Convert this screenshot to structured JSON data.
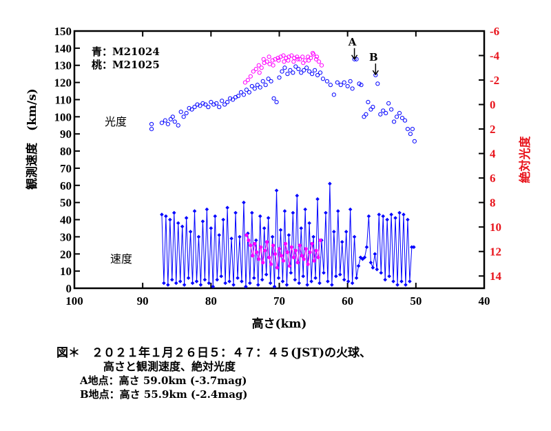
{
  "chart_data": {
    "type": "scatter",
    "xlabel": "高さ(km)",
    "ylabel": "観測速度　(km/s)",
    "y2label": "絶対光度",
    "xlim": [
      100,
      40
    ],
    "ylim": [
      0,
      150
    ],
    "y2lim": [
      15,
      -6
    ],
    "xticks": [
      100,
      90,
      80,
      70,
      60,
      50,
      40
    ],
    "yticks": [
      0,
      10,
      20,
      30,
      40,
      50,
      60,
      70,
      80,
      90,
      100,
      110,
      120,
      130,
      140,
      150
    ],
    "y2ticks": [
      -6,
      -4,
      -2,
      0,
      2,
      4,
      6,
      8,
      10,
      12,
      14
    ],
    "legend": [
      {
        "label": "青：M21024",
        "color": "#0000ff"
      },
      {
        "label": "桃：M21025",
        "color": "#ff00ff"
      }
    ],
    "region_labels": {
      "brightness": "光度",
      "velocity": "速度"
    },
    "annotations": [
      {
        "label": "A",
        "x": 59.0,
        "y": 132
      },
      {
        "label": "B",
        "x": 55.9,
        "y": 123
      }
    ],
    "series": [
      {
        "name": "青：M21024",
        "kind": "brightness",
        "axis": "right",
        "color": "#0000ff",
        "x": [
          88.7,
          88.7,
          87.2,
          86.7,
          86.3,
          85.9,
          85.6,
          85.3,
          84.8,
          84.4,
          84.0,
          83.6,
          83.2,
          82.8,
          82.4,
          82.0,
          81.6,
          81.2,
          80.8,
          80.4,
          80.0,
          79.6,
          79.2,
          78.8,
          78.4,
          78.0,
          77.6,
          77.2,
          76.8,
          76.4,
          76.0,
          75.6,
          75.2,
          74.8,
          74.4,
          74.0,
          73.6,
          73.2,
          72.8,
          72.4,
          72.0,
          71.6,
          71.2,
          70.8,
          70.4,
          70.0,
          69.6,
          69.2,
          68.8,
          68.4,
          68.0,
          67.6,
          67.2,
          66.8,
          66.4,
          66.0,
          65.6,
          65.2,
          64.8,
          64.4,
          64.0,
          63.6,
          63.0,
          62.5,
          62.0,
          61.5,
          61.0,
          60.5,
          60.0,
          59.6,
          59.3,
          59.0,
          58.7,
          58.3,
          58.0,
          57.6,
          57.3,
          57.0,
          56.6,
          56.3,
          55.9,
          55.6,
          55.2,
          54.8,
          54.4,
          54.0,
          53.6,
          53.2,
          52.8,
          52.4,
          52.0,
          51.6,
          51.2,
          50.8,
          50.5,
          50.2
        ],
        "y": [
          2.0,
          1.6,
          1.5,
          1.3,
          1.6,
          1.2,
          1.0,
          1.4,
          1.7,
          0.6,
          1.0,
          0.7,
          0.3,
          0.4,
          0.2,
          0.0,
          0.1,
          -0.1,
          0.0,
          0.2,
          -0.2,
          0.0,
          -0.1,
          0.2,
          -0.3,
          0.0,
          -0.2,
          -0.5,
          -0.4,
          -0.6,
          -0.7,
          -1.0,
          -0.8,
          -1.2,
          -1.0,
          -1.5,
          -1.3,
          -1.6,
          -1.4,
          -1.9,
          -1.6,
          -2.1,
          -1.9,
          -0.5,
          -0.2,
          -2.2,
          -2.7,
          -3.0,
          -2.5,
          -2.8,
          -2.6,
          -3.1,
          -2.9,
          -2.6,
          -2.8,
          -3.0,
          -2.7,
          -2.5,
          -2.8,
          -2.4,
          -2.6,
          -2.1,
          -1.9,
          -1.6,
          -0.8,
          -1.8,
          -1.6,
          -1.8,
          -1.5,
          -1.9,
          -1.3,
          -3.7,
          -3.7,
          -1.7,
          -1.6,
          1.0,
          0.8,
          -0.2,
          0.4,
          0.2,
          -2.4,
          -1.7,
          0.8,
          0.5,
          0.7,
          -0.1,
          0.4,
          1.4,
          1.0,
          0.7,
          1.1,
          1.3,
          2.0,
          2.4,
          2.0,
          3.0
        ]
      },
      {
        "name": "桃：M21025",
        "kind": "brightness",
        "axis": "right",
        "color": "#ff00ff",
        "x": [
          75.0,
          74.6,
          74.2,
          73.8,
          73.4,
          73.0,
          72.6,
          72.2,
          71.8,
          71.4,
          71.0,
          70.6,
          70.2,
          69.8,
          69.4,
          69.0,
          68.6,
          68.2,
          67.8,
          67.4,
          67.0,
          66.6,
          66.2,
          65.8,
          65.4,
          65.0,
          64.6,
          64.2,
          63.8,
          72.9,
          72.3,
          71.5,
          70.9,
          70.1,
          69.3,
          68.7,
          67.9,
          67.3,
          66.5,
          65.7,
          65.1,
          64.5
        ],
        "y": [
          -1.8,
          -2.0,
          -2.3,
          -2.7,
          -2.9,
          -3.2,
          -3.0,
          -3.4,
          -3.5,
          -3.3,
          -3.6,
          -3.7,
          -3.8,
          -3.9,
          -4.0,
          -3.8,
          -3.9,
          -4.0,
          -3.8,
          -3.9,
          -3.7,
          -3.9,
          -3.6,
          -3.9,
          -3.8,
          -4.1,
          -3.7,
          -3.5,
          -3.2,
          -2.6,
          -3.7,
          -3.9,
          -3.2,
          -3.6,
          -3.5,
          -3.6,
          -3.5,
          -3.7,
          -3.4,
          -3.6,
          -4.2,
          -3.9
        ]
      },
      {
        "name": "青：M21024",
        "kind": "velocity",
        "axis": "left",
        "color": "#0000ff",
        "x": [
          87.2,
          86.9,
          86.6,
          86.3,
          86.0,
          85.7,
          85.4,
          85.1,
          84.8,
          84.5,
          84.2,
          83.9,
          83.6,
          83.3,
          83.0,
          82.7,
          82.4,
          82.1,
          81.8,
          81.5,
          81.2,
          80.9,
          80.6,
          80.3,
          80.0,
          79.7,
          79.4,
          79.1,
          78.8,
          78.5,
          78.2,
          77.9,
          77.6,
          77.3,
          77.0,
          76.7,
          76.4,
          76.1,
          75.8,
          75.5,
          75.2,
          74.9,
          74.6,
          74.3,
          74.0,
          73.7,
          73.4,
          73.1,
          72.8,
          72.5,
          72.2,
          71.9,
          71.6,
          71.3,
          71.0,
          70.7,
          70.4,
          70.1,
          69.8,
          69.5,
          69.2,
          68.9,
          68.6,
          68.3,
          68.0,
          67.7,
          67.4,
          67.1,
          66.8,
          66.5,
          66.2,
          65.9,
          65.6,
          65.3,
          65.0,
          64.7,
          64.4,
          64.1,
          63.8,
          63.5,
          63.2,
          62.9,
          62.6,
          62.3,
          62.0,
          61.7,
          61.4,
          61.1,
          60.8,
          60.5,
          60.2,
          59.9,
          59.6,
          59.3,
          59.0,
          58.7,
          58.4,
          58.1,
          57.8,
          57.5,
          57.2,
          56.9,
          56.6,
          56.3,
          56.0,
          55.7,
          55.4,
          55.1,
          54.8,
          54.5,
          54.2,
          53.9,
          53.6,
          53.3,
          53.0,
          52.7,
          52.4,
          52.1,
          51.8,
          51.5,
          51.2,
          50.9,
          50.6,
          50.3
        ],
        "y": [
          43,
          3,
          42,
          2,
          40,
          5,
          44,
          3,
          38,
          4,
          36,
          2,
          41,
          6,
          33,
          3,
          45,
          4,
          30,
          2,
          39,
          5,
          46,
          3,
          35,
          1,
          42,
          5,
          31,
          7,
          40,
          3,
          47,
          4,
          29,
          2,
          44,
          6,
          30,
          4,
          50,
          1,
          32,
          3,
          44,
          6,
          28,
          2,
          42,
          5,
          35,
          8,
          41,
          3,
          30,
          1,
          57,
          6,
          34,
          4,
          45,
          2,
          31,
          9,
          44,
          5,
          54,
          3,
          35,
          7,
          46,
          2,
          38,
          4,
          30,
          6,
          52,
          3,
          28,
          9,
          44,
          4,
          61,
          2,
          33,
          7,
          45,
          8,
          27,
          5,
          33,
          4,
          46,
          3,
          30,
          6,
          13,
          18,
          17,
          18,
          24,
          42,
          15,
          12,
          20,
          11,
          43,
          9,
          42,
          5,
          40,
          7,
          43,
          4,
          41,
          2,
          44,
          4,
          43,
          2,
          40,
          4,
          24,
          24
        ]
      },
      {
        "name": "桃：M21025",
        "kind": "velocity",
        "axis": "left",
        "color": "#ff00ff",
        "x": [
          74.8,
          74.5,
          74.2,
          73.9,
          73.6,
          73.3,
          73.0,
          72.7,
          72.4,
          72.1,
          71.8,
          71.5,
          71.2,
          70.9,
          70.6,
          70.3,
          70.0,
          69.7,
          69.4,
          69.1,
          68.8,
          68.5,
          68.2,
          67.9,
          67.6,
          67.3,
          67.0,
          66.7,
          66.4,
          66.1,
          65.8,
          65.5,
          65.2,
          64.9,
          64.6,
          64.3,
          64.0
        ],
        "y": [
          31,
          28,
          25,
          19,
          26,
          21,
          17,
          24,
          15,
          22,
          27,
          18,
          14,
          25,
          20,
          12,
          23,
          19,
          16,
          26,
          21,
          13,
          24,
          18,
          22,
          15,
          25,
          19,
          17,
          23,
          14,
          21,
          26,
          16,
          22,
          18,
          28
        ]
      }
    ]
  },
  "caption": {
    "line1": "図＊　２０２１年１月２６日５：４７：４５(JST)の火球、",
    "line2": "高さと観測速度、絶対光度",
    "line3": "A地点：高さ  59.0km (-3.7mag)",
    "line4": "B地点：高さ  55.9km (-2.4mag)"
  },
  "colors": {
    "axis_left": "#000000",
    "axis_right": "#e8141c",
    "blue": "#0000ff",
    "pink": "#ff00ff"
  }
}
